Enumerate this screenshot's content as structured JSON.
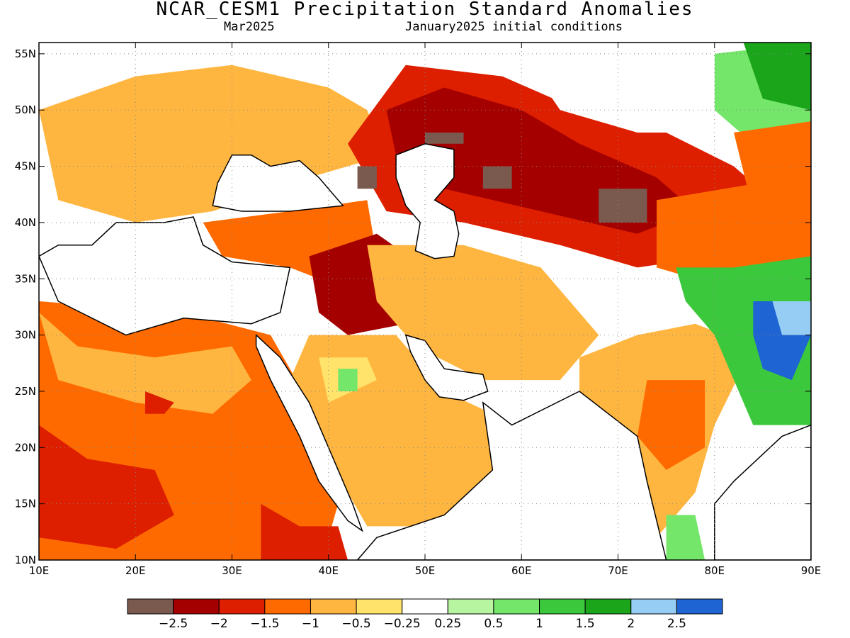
{
  "title": "NCAR_CESM1 Precipitation Standard Anomalies",
  "subtitle_left": "Mar2025",
  "subtitle_right": "January2025 initial conditions",
  "map": {
    "lon_range": [
      10,
      90
    ],
    "lat_range": [
      10,
      56
    ],
    "lon_ticks": [
      {
        "value": 10,
        "label": "10E"
      },
      {
        "value": 20,
        "label": "20E"
      },
      {
        "value": 30,
        "label": "30E"
      },
      {
        "value": 40,
        "label": "40E"
      },
      {
        "value": 50,
        "label": "50E"
      },
      {
        "value": 60,
        "label": "60E"
      },
      {
        "value": 70,
        "label": "70E"
      },
      {
        "value": 80,
        "label": "80E"
      },
      {
        "value": 90,
        "label": "90E"
      }
    ],
    "lat_ticks": [
      {
        "value": 10,
        "label": "10N"
      },
      {
        "value": 15,
        "label": "15N"
      },
      {
        "value": 20,
        "label": "20N"
      },
      {
        "value": 25,
        "label": "25N"
      },
      {
        "value": 30,
        "label": "30N"
      },
      {
        "value": 35,
        "label": "35N"
      },
      {
        "value": 40,
        "label": "40N"
      },
      {
        "value": 45,
        "label": "45N"
      },
      {
        "value": 50,
        "label": "50N"
      },
      {
        "value": 55,
        "label": "55N"
      }
    ],
    "gridlines": "dotted"
  },
  "colorbar": {
    "colors": [
      "#7a5a4f",
      "#a50000",
      "#dd1f00",
      "#ff6a00",
      "#ffb640",
      "#ffe36b",
      "#ffffff",
      "#b7f5a0",
      "#74e66a",
      "#3cc83c",
      "#1aa51a",
      "#96cdf5",
      "#1e64d2"
    ],
    "labels": [
      "−2.5",
      "−2",
      "−1.5",
      "−1",
      "−0.5",
      "−0.25",
      "0.25",
      "0.5",
      "1",
      "1.5",
      "2",
      "2.5"
    ]
  },
  "regions": [
    {
      "name": "sahara-west",
      "level": 3,
      "lonlat": [
        [
          10,
          33
        ],
        [
          25,
          32
        ],
        [
          34,
          30
        ],
        [
          38,
          24
        ],
        [
          42,
          18
        ],
        [
          40,
          12
        ],
        [
          36,
          10
        ],
        [
          10,
          10
        ]
      ]
    },
    {
      "name": "libya-band",
      "level": 4,
      "lonlat": [
        [
          10,
          32
        ],
        [
          14,
          29
        ],
        [
          22,
          28
        ],
        [
          30,
          29
        ],
        [
          32,
          26
        ],
        [
          28,
          23
        ],
        [
          20,
          24
        ],
        [
          12,
          26
        ]
      ]
    },
    {
      "name": "chad-deep",
      "level": 2,
      "lonlat": [
        [
          10,
          22
        ],
        [
          15,
          19
        ],
        [
          22,
          18
        ],
        [
          24,
          14
        ],
        [
          18,
          11
        ],
        [
          10,
          12
        ]
      ]
    },
    {
      "name": "sahara-dark",
      "level": 2,
      "lonlat": [
        [
          21,
          25
        ],
        [
          24,
          24
        ],
        [
          23,
          23
        ],
        [
          21,
          23
        ]
      ]
    },
    {
      "name": "horn-africa",
      "level": 2,
      "lonlat": [
        [
          33,
          15
        ],
        [
          37,
          13
        ],
        [
          41,
          13
        ],
        [
          42,
          10
        ],
        [
          33,
          10
        ]
      ]
    },
    {
      "name": "arabia",
      "level": 4,
      "lonlat": [
        [
          38,
          30
        ],
        [
          47,
          30
        ],
        [
          52,
          25
        ],
        [
          57,
          23
        ],
        [
          60,
          21
        ],
        [
          56,
          16
        ],
        [
          50,
          13
        ],
        [
          44,
          13
        ],
        [
          40,
          19
        ],
        [
          36,
          26
        ]
      ]
    },
    {
      "name": "arabia-pale",
      "level": 5,
      "lonlat": [
        [
          39,
          28
        ],
        [
          44,
          28
        ],
        [
          45,
          26
        ],
        [
          40,
          24
        ]
      ]
    },
    {
      "name": "arabia-green",
      "level": 8,
      "lonlat": [
        [
          41,
          27
        ],
        [
          43,
          27
        ],
        [
          43,
          25
        ],
        [
          41,
          25
        ]
      ]
    },
    {
      "name": "europe-orange",
      "level": 4,
      "lonlat": [
        [
          10,
          50
        ],
        [
          20,
          53
        ],
        [
          30,
          54
        ],
        [
          40,
          52
        ],
        [
          44,
          50
        ],
        [
          46,
          46
        ],
        [
          38,
          44
        ],
        [
          28,
          41
        ],
        [
          20,
          40
        ],
        [
          12,
          42
        ]
      ]
    },
    {
      "name": "turkey",
      "level": 3,
      "lonlat": [
        [
          27,
          40
        ],
        [
          36,
          41
        ],
        [
          44,
          42
        ],
        [
          45,
          37
        ],
        [
          42,
          34
        ],
        [
          36,
          36
        ],
        [
          29,
          37
        ]
      ]
    },
    {
      "name": "mesopotamia",
      "level": 1,
      "lonlat": [
        [
          38,
          37
        ],
        [
          45,
          39
        ],
        [
          50,
          36
        ],
        [
          48,
          31
        ],
        [
          42,
          30
        ],
        [
          39,
          32
        ]
      ]
    },
    {
      "name": "iran",
      "level": 4,
      "lonlat": [
        [
          44,
          38
        ],
        [
          54,
          38
        ],
        [
          62,
          36
        ],
        [
          68,
          30
        ],
        [
          64,
          26
        ],
        [
          56,
          26
        ],
        [
          49,
          29
        ],
        [
          45,
          33
        ]
      ]
    },
    {
      "name": "central-asia",
      "level": 2,
      "lonlat": [
        [
          42,
          47
        ],
        [
          48,
          54
        ],
        [
          58,
          53
        ],
        [
          66,
          50
        ],
        [
          75,
          48
        ],
        [
          82,
          45
        ],
        [
          86,
          42
        ],
        [
          80,
          37
        ],
        [
          72,
          36
        ],
        [
          64,
          38
        ],
        [
          54,
          40
        ],
        [
          46,
          41
        ]
      ]
    },
    {
      "name": "kazakh-core",
      "level": 1,
      "lonlat": [
        [
          46,
          50
        ],
        [
          52,
          52
        ],
        [
          60,
          50
        ],
        [
          66,
          47
        ],
        [
          74,
          44
        ],
        [
          78,
          41
        ],
        [
          72,
          39
        ],
        [
          62,
          41
        ],
        [
          52,
          43
        ],
        [
          47,
          46
        ]
      ]
    },
    {
      "name": "kazakh-brown",
      "level": 0,
      "lonlat": [
        [
          50,
          48
        ],
        [
          54,
          48
        ],
        [
          54,
          47
        ],
        [
          50,
          47
        ]
      ]
    },
    {
      "name": "caucasus-brown",
      "level": 0,
      "lonlat": [
        [
          43,
          45
        ],
        [
          45,
          45
        ],
        [
          45,
          43
        ],
        [
          43,
          43
        ]
      ]
    },
    {
      "name": "kyrgyz-brown",
      "level": 0,
      "lonlat": [
        [
          68,
          43
        ],
        [
          73,
          43
        ],
        [
          73,
          40
        ],
        [
          68,
          40
        ]
      ]
    },
    {
      "name": "aral-brown",
      "level": 0,
      "lonlat": [
        [
          56,
          45
        ],
        [
          59,
          45
        ],
        [
          59,
          43
        ],
        [
          56,
          43
        ]
      ]
    },
    {
      "name": "tibet-orange",
      "level": 3,
      "lonlat": [
        [
          74,
          42
        ],
        [
          88,
          44
        ],
        [
          90,
          42
        ],
        [
          90,
          35
        ],
        [
          82,
          34
        ],
        [
          74,
          36
        ]
      ]
    },
    {
      "name": "india",
      "level": 4,
      "lonlat": [
        [
          66,
          28
        ],
        [
          72,
          30
        ],
        [
          78,
          31
        ],
        [
          84,
          29
        ],
        [
          80,
          22
        ],
        [
          78,
          16
        ],
        [
          74,
          12
        ],
        [
          70,
          17
        ],
        [
          66,
          23
        ]
      ]
    },
    {
      "name": "india-orange",
      "level": 3,
      "lonlat": [
        [
          73,
          26
        ],
        [
          79,
          26
        ],
        [
          79,
          20
        ],
        [
          75,
          18
        ],
        [
          72,
          21
        ]
      ]
    },
    {
      "name": "himalaya-green",
      "level": 9,
      "lonlat": [
        [
          76,
          36
        ],
        [
          82,
          36
        ],
        [
          90,
          37
        ],
        [
          90,
          22
        ],
        [
          84,
          22
        ],
        [
          80,
          30
        ],
        [
          77,
          33
        ]
      ]
    },
    {
      "name": "tibet-blue",
      "level": 12,
      "lonlat": [
        [
          84,
          33
        ],
        [
          88,
          33
        ],
        [
          90,
          30
        ],
        [
          88,
          26
        ],
        [
          85,
          27
        ],
        [
          84,
          30
        ]
      ]
    },
    {
      "name": "tibet-lightblue",
      "level": 11,
      "lonlat": [
        [
          86,
          33
        ],
        [
          90,
          33
        ],
        [
          90,
          30
        ],
        [
          87,
          30
        ]
      ]
    },
    {
      "name": "siberia-green",
      "level": 8,
      "lonlat": [
        [
          80,
          55
        ],
        [
          90,
          56
        ],
        [
          90,
          46
        ],
        [
          84,
          47
        ],
        [
          80,
          50
        ]
      ]
    },
    {
      "name": "siberia-darkgreen",
      "level": 10,
      "lonlat": [
        [
          83,
          56
        ],
        [
          90,
          56
        ],
        [
          90,
          50
        ],
        [
          85,
          51
        ]
      ]
    },
    {
      "name": "mongolia-orange",
      "level": 3,
      "lonlat": [
        [
          82,
          48
        ],
        [
          90,
          49
        ],
        [
          90,
          40
        ],
        [
          84,
          41
        ]
      ]
    },
    {
      "name": "russia-white",
      "level": 6,
      "lonlat": [
        [
          60,
          55
        ],
        [
          72,
          56
        ],
        [
          80,
          55
        ],
        [
          80,
          48
        ],
        [
          72,
          48
        ],
        [
          64,
          50
        ]
      ]
    },
    {
      "name": "south-india-green",
      "level": 8,
      "lonlat": [
        [
          75,
          14
        ],
        [
          78,
          14
        ],
        [
          79,
          10
        ],
        [
          75,
          10
        ]
      ]
    }
  ],
  "features": [
    {
      "name": "red-sea",
      "lonlat": [
        [
          32.5,
          30
        ],
        [
          35,
          28
        ],
        [
          38,
          24
        ],
        [
          40,
          20
        ],
        [
          42.5,
          15
        ],
        [
          43.5,
          12.6
        ],
        [
          42,
          13.5
        ],
        [
          39,
          17
        ],
        [
          37,
          21
        ],
        [
          34,
          26
        ],
        [
          32.5,
          29
        ]
      ]
    },
    {
      "name": "persian-gulf",
      "lonlat": [
        [
          48,
          30
        ],
        [
          50,
          29.5
        ],
        [
          52,
          27
        ],
        [
          56,
          26.5
        ],
        [
          56.5,
          25
        ],
        [
          54,
          24.2
        ],
        [
          51.5,
          24.5
        ],
        [
          50,
          26
        ],
        [
          48.5,
          28.5
        ]
      ]
    },
    {
      "name": "arabian-sea",
      "lonlat": [
        [
          56,
          24
        ],
        [
          59,
          22
        ],
        [
          66,
          25
        ],
        [
          72,
          21
        ],
        [
          73,
          17
        ],
        [
          75,
          10
        ],
        [
          43,
          10
        ],
        [
          45,
          12
        ],
        [
          52,
          14
        ],
        [
          57,
          18
        ]
      ]
    },
    {
      "name": "mediterranean",
      "lonlat": [
        [
          10,
          37
        ],
        [
          12,
          33
        ],
        [
          19,
          30
        ],
        [
          25,
          31.5
        ],
        [
          32,
          31
        ],
        [
          35,
          32
        ],
        [
          36,
          36
        ],
        [
          30,
          36.5
        ],
        [
          27,
          38
        ],
        [
          26,
          40.5
        ],
        [
          23,
          40
        ],
        [
          20,
          40
        ],
        [
          18,
          40
        ],
        [
          15.5,
          38
        ],
        [
          12,
          38
        ]
      ]
    },
    {
      "name": "black-sea",
      "lonlat": [
        [
          28,
          41.5
        ],
        [
          28.5,
          43.5
        ],
        [
          30,
          46
        ],
        [
          32,
          46
        ],
        [
          34,
          45
        ],
        [
          37,
          45.5
        ],
        [
          39,
          44
        ],
        [
          41.5,
          41.5
        ],
        [
          36,
          41
        ],
        [
          31,
          41
        ]
      ]
    },
    {
      "name": "caspian-sea",
      "lonlat": [
        [
          47,
          44
        ],
        [
          47,
          46
        ],
        [
          50,
          47
        ],
        [
          53,
          46.5
        ],
        [
          53,
          44
        ],
        [
          51,
          42
        ],
        [
          53,
          41
        ],
        [
          53.5,
          39
        ],
        [
          53,
          37
        ],
        [
          51,
          36.8
        ],
        [
          49,
          37.5
        ],
        [
          49.5,
          40
        ],
        [
          48,
          41.5
        ]
      ]
    },
    {
      "name": "bay-of-bengal",
      "lonlat": [
        [
          80,
          15
        ],
        [
          82,
          17
        ],
        [
          87,
          21
        ],
        [
          90,
          22
        ],
        [
          90,
          10
        ],
        [
          80,
          10
        ]
      ]
    }
  ]
}
